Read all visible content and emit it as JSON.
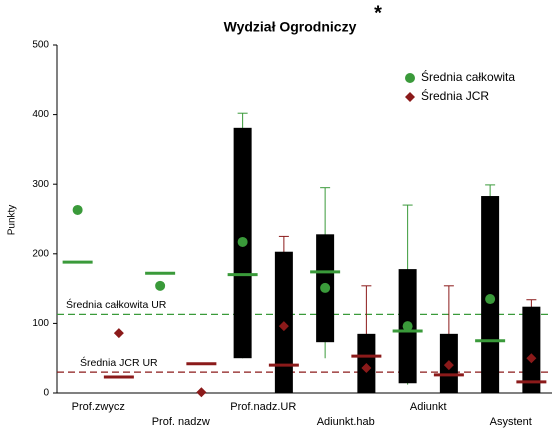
{
  "chart_data": {
    "type": "box",
    "title": "Wydział Ogrodniczy",
    "annotation": "*",
    "y_label": "Punkty",
    "categories": [
      "Prof.zwycz",
      "Prof. nadzw",
      "Prof.nadz.UR",
      "Adiunkt.hab",
      "Adiunkt",
      "Asystent"
    ],
    "ylim": [
      0,
      500
    ],
    "yticks": [
      0,
      100,
      200,
      300,
      400,
      500
    ],
    "legend": "upper right",
    "box_color": "#000000",
    "series": [
      {
        "name": "Średnia całkowita",
        "color": "#3a9a3a",
        "marker": "circle",
        "mean": [
          263,
          154,
          217,
          151,
          96,
          135
        ],
        "median": [
          188,
          172,
          170,
          174,
          89,
          75
        ],
        "q1": [
          null,
          null,
          50,
          73,
          14,
          0
        ],
        "q3": [
          null,
          null,
          381,
          228,
          178,
          283
        ],
        "min": [
          null,
          null,
          50,
          50,
          12,
          0
        ],
        "max": [
          null,
          null,
          402,
          295,
          270,
          299
        ]
      },
      {
        "name": "Średnia JCR",
        "color": "#8b1a1a",
        "marker": "diamond",
        "mean": [
          86,
          1,
          96,
          36,
          40,
          50
        ],
        "median": [
          23,
          42,
          40,
          53,
          26,
          16
        ],
        "q1": [
          null,
          null,
          0,
          0,
          0,
          0
        ],
        "q3": [
          null,
          null,
          203,
          85,
          85,
          124
        ],
        "min": [
          null,
          null,
          0,
          0,
          0,
          0
        ],
        "max": [
          null,
          null,
          225,
          154,
          154,
          134
        ]
      }
    ],
    "reference_lines": [
      {
        "label": "Średnia całkowita UR",
        "value": 113,
        "color": "#3a9a3a"
      },
      {
        "label": "Średnia JCR UR",
        "value": 30,
        "color": "#8b1a1a"
      }
    ]
  }
}
